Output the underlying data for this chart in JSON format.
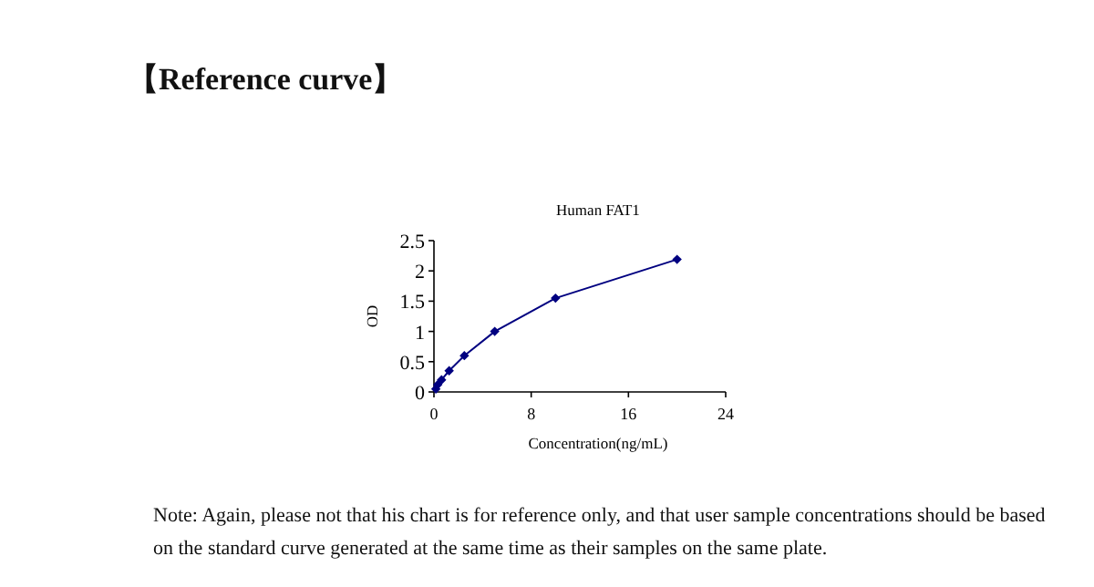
{
  "chart_data": {
    "type": "line",
    "title": "Human FAT1",
    "xlabel": "Concentration(ng/mL)",
    "ylabel": "OD",
    "annotations": [
      "【Reference curve】",
      "Note: Again, please not that his chart is for reference only, and that user sample concentrations should be based on the standard curve generated at the same time as their samples on the same plate."
    ],
    "x": [
      0.156,
      0.3125,
      0.625,
      1.25,
      2.5,
      5,
      10,
      20
    ],
    "series": [
      {
        "color": "#000080",
        "values": [
          0.05,
          0.12,
          0.2,
          0.35,
          0.6,
          1.0,
          1.55,
          2.19
        ]
      }
    ],
    "xlim": [
      0,
      24
    ],
    "xticks": [
      0,
      8,
      16,
      24
    ],
    "ylim": [
      0,
      2.5
    ],
    "yticks": [
      0,
      0.5,
      1,
      1.5,
      2,
      2.5
    ],
    "grid": false,
    "marker": "diamond",
    "line_style": "solid"
  }
}
